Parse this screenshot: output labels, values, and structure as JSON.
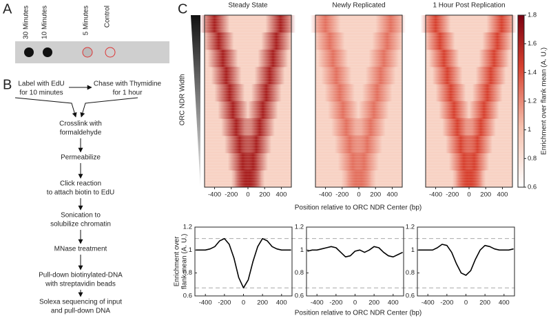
{
  "panel_a": {
    "label": "A",
    "lanes": [
      "30 Minutes",
      "10 Minutes",
      "5 Minutes",
      "Control"
    ]
  },
  "panel_b": {
    "label": "B",
    "start_steps": [
      [
        "Label with EdU",
        "for 10 minutes"
      ],
      [
        "Chase with Thymidine",
        "for 1 hour"
      ]
    ],
    "steps": [
      [
        "Crosslink with",
        "formaldehyde"
      ],
      [
        "Permeabilize"
      ],
      [
        "Click reaction",
        "to attach biotin to EdU"
      ],
      [
        "Sonication to",
        "solubilize chromatin"
      ],
      [
        "MNase treatment"
      ],
      [
        "Pull-down biotinylated-DNA",
        "with streptavidin beads"
      ],
      [
        "Solexa sequencing of input",
        "and pull-down DNA"
      ]
    ]
  },
  "panel_c": {
    "label": "C",
    "row_axis_label": "ORC NDR Width",
    "heatmaps": {
      "type": "heatmap",
      "xlabel": "Position relative to ORC NDR Center (bp)",
      "xlim": [
        -520,
        520
      ],
      "xticks": [
        -400,
        -200,
        0,
        200,
        400
      ],
      "colorbar": {
        "label": "Enrichment over flank mean (A. U.)",
        "lim": [
          0.6,
          1.8
        ],
        "ticks": [
          0.6,
          0.8,
          1,
          1.2,
          1.4,
          1.6,
          1.8
        ]
      },
      "panels": [
        {
          "title": "Steady State",
          "intensity": 1.6,
          "left_peaks": [
            -400,
            -350,
            -300,
            -260,
            -220,
            -180,
            -140,
            -100,
            -60,
            -20
          ],
          "right_peaks": [
            390,
            340,
            300,
            260,
            220,
            180,
            140,
            100,
            60,
            20
          ]
        },
        {
          "title": "Newly Replicated",
          "intensity": 1.25,
          "left_peaks": [
            -400,
            -350,
            -310,
            -270,
            -230,
            -190,
            -150,
            -110,
            -70,
            -30
          ],
          "right_peaks": [
            380,
            340,
            300,
            260,
            220,
            180,
            140,
            100,
            60,
            25
          ]
        },
        {
          "title": "1 Hour Post Replication",
          "intensity": 1.4,
          "left_peaks": [
            -400,
            -350,
            -300,
            -260,
            -220,
            -180,
            -140,
            -100,
            -60,
            -20
          ],
          "right_peaks": [
            390,
            340,
            300,
            260,
            220,
            180,
            140,
            100,
            60,
            20
          ]
        }
      ]
    },
    "profiles": {
      "type": "line",
      "ylabel": [
        "Enrichment over",
        "flank mean (A. U.)"
      ],
      "xlabel": "Position relative to ORC NDR Center (bp)",
      "x": [
        -500,
        -450,
        -400,
        -350,
        -300,
        -250,
        -200,
        -150,
        -100,
        -50,
        0,
        50,
        100,
        150,
        200,
        250,
        300,
        350,
        400,
        450,
        500
      ],
      "xlim": [
        -510,
        510
      ],
      "xticks": [
        -400,
        -200,
        0,
        200,
        400
      ],
      "ylim": [
        0.6,
        1.2
      ],
      "yticks": [
        0.6,
        0.8,
        1,
        1.2
      ],
      "reference_lines": [
        1.1,
        0.67
      ],
      "series": [
        {
          "color": "#000000",
          "values": [
            1.0,
            1.0,
            1.0,
            1.01,
            1.03,
            1.08,
            1.1,
            1.05,
            0.93,
            0.76,
            0.67,
            0.74,
            0.9,
            1.03,
            1.1,
            1.08,
            1.03,
            1.01,
            1.0,
            1.0,
            1.0
          ]
        },
        {
          "color": "#000000",
          "values": [
            0.99,
            1.0,
            1.0,
            1.01,
            1.02,
            1.03,
            1.02,
            0.98,
            0.94,
            0.95,
            0.99,
            1.0,
            0.98,
            1.0,
            1.03,
            1.02,
            0.98,
            0.95,
            0.94,
            0.96,
            0.98
          ]
        },
        {
          "color": "#000000",
          "values": [
            1.0,
            1.0,
            1.0,
            1.0,
            1.02,
            1.05,
            1.04,
            0.98,
            0.88,
            0.8,
            0.78,
            0.82,
            0.92,
            1.0,
            1.04,
            1.03,
            1.01,
            1.0,
            1.0,
            1.0,
            1.01
          ]
        }
      ]
    }
  }
}
